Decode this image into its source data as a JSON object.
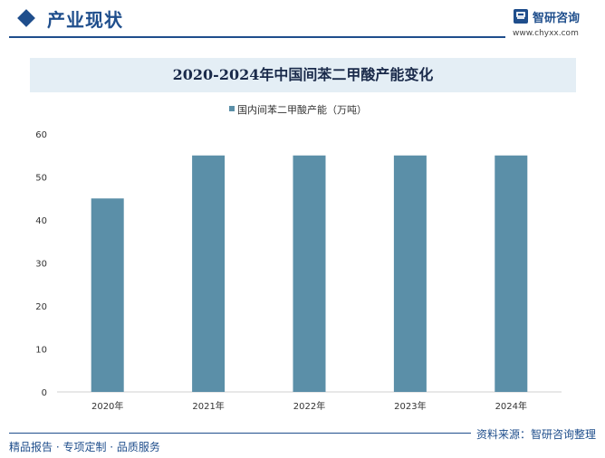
{
  "header": {
    "section_title": "产业现状",
    "logo_name": "智研咨询",
    "logo_url": "www.chyxx.com"
  },
  "footer": {
    "source": "资料来源：智研咨询整理",
    "slogan": "精品报告 · 专项定制 · 品质服务"
  },
  "colors": {
    "accent": "#1f4e8c",
    "bar": "#5b8fa8",
    "title_band": "#e4eef5"
  },
  "chart_data": {
    "type": "bar",
    "title": "2020-2024年中国间苯二甲酸产能变化",
    "categories": [
      "2020年",
      "2021年",
      "2022年",
      "2023年",
      "2024年"
    ],
    "series": [
      {
        "name": "国内间苯二甲酸产能（万吨）",
        "values": [
          45,
          55,
          55,
          55,
          55
        ]
      }
    ],
    "ylim": [
      0,
      60
    ],
    "yticks": [
      0,
      10,
      20,
      30,
      40,
      50,
      60
    ],
    "grid": false,
    "legend": "top-center",
    "xlabel": "",
    "ylabel": ""
  }
}
